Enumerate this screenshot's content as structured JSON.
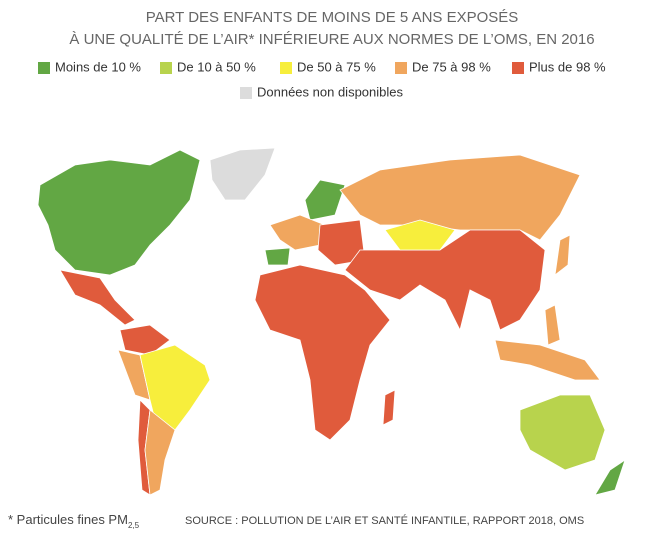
{
  "header": {
    "title_lines": [
      "PART DES ENFANTS DE MOINS DE 5 ANS EXPOSÉS",
      "À UNE QUALITÉ DE L’AIR* INFÉRIEURE AUX NORMES DE L’OMS, EN 2016"
    ]
  },
  "legend": {
    "items": [
      {
        "label": "Moins de 10 %",
        "color": "#62a744"
      },
      {
        "label": "De 10 à 50 %",
        "color": "#b8d34d"
      },
      {
        "label": "De 50 à 75 %",
        "color": "#f7ee3c"
      },
      {
        "label": "De 75 à 98 %",
        "color": "#f0a65e"
      },
      {
        "label": "Plus de 98 %",
        "color": "#e05b3c"
      },
      {
        "label": "Données non disponibles",
        "color": "#dcdcdc"
      }
    ]
  },
  "footnote": {
    "text": "* Particules fines PM",
    "subscript": "2,5"
  },
  "source": "SOURCE : POLLUTION DE L’AIR ET SANTÉ INFANTILE, RAPPORT 2018, OMS"
}
